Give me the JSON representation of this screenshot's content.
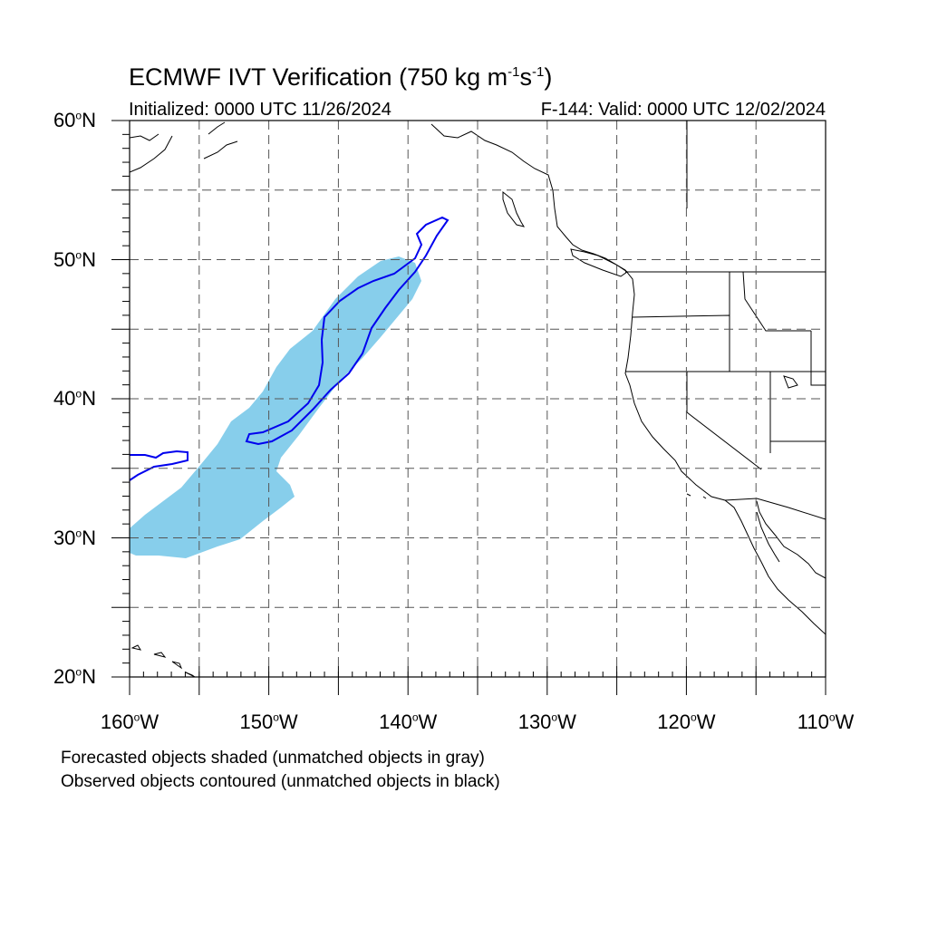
{
  "title": {
    "main": "ECMWF IVT Verification (750 kg m",
    "unit_m_exp": "-1",
    "unit_s": "s",
    "unit_s_exp": "-1",
    "close": ")"
  },
  "subtitle": {
    "initialized": "Initialized: 0000 UTC 11/26/2024",
    "valid": "F-144: Valid: 0000 UTC 12/02/2024"
  },
  "map": {
    "projection": "cylindrical equidistant",
    "lon_range": [
      -160,
      -110
    ],
    "lat_range": [
      20,
      60
    ],
    "grid_lons": [
      -155,
      -150,
      -145,
      -140,
      -135,
      -130,
      -125,
      -120,
      -115
    ],
    "grid_lats": [
      25,
      30,
      35,
      40,
      45,
      50,
      55
    ],
    "lat_labels": [
      {
        "lat": 60,
        "num": "60",
        "suffix": "N"
      },
      {
        "lat": 50,
        "num": "50",
        "suffix": "N"
      },
      {
        "lat": 40,
        "num": "40",
        "suffix": "N"
      },
      {
        "lat": 30,
        "num": "30",
        "suffix": "N"
      },
      {
        "lat": 20,
        "num": "20",
        "suffix": "N"
      }
    ],
    "lon_labels": [
      {
        "lon": -160,
        "num": "160",
        "suffix": "W"
      },
      {
        "lon": -150,
        "num": "150",
        "suffix": "W"
      },
      {
        "lon": -140,
        "num": "140",
        "suffix": "W"
      },
      {
        "lon": -130,
        "num": "130",
        "suffix": "W"
      },
      {
        "lon": -120,
        "num": "120",
        "suffix": "W"
      },
      {
        "lon": -110,
        "num": "110",
        "suffix": "W"
      }
    ],
    "forecast_object_color": "#87ceeb",
    "observed_object_color": "#0000ee",
    "coast_color": "#000000",
    "grid_color": "#555555"
  },
  "legend": {
    "line1": "Forecasted objects shaded (unmatched objects in gray)",
    "line2": "Observed objects contoured (unmatched objects in black)"
  }
}
